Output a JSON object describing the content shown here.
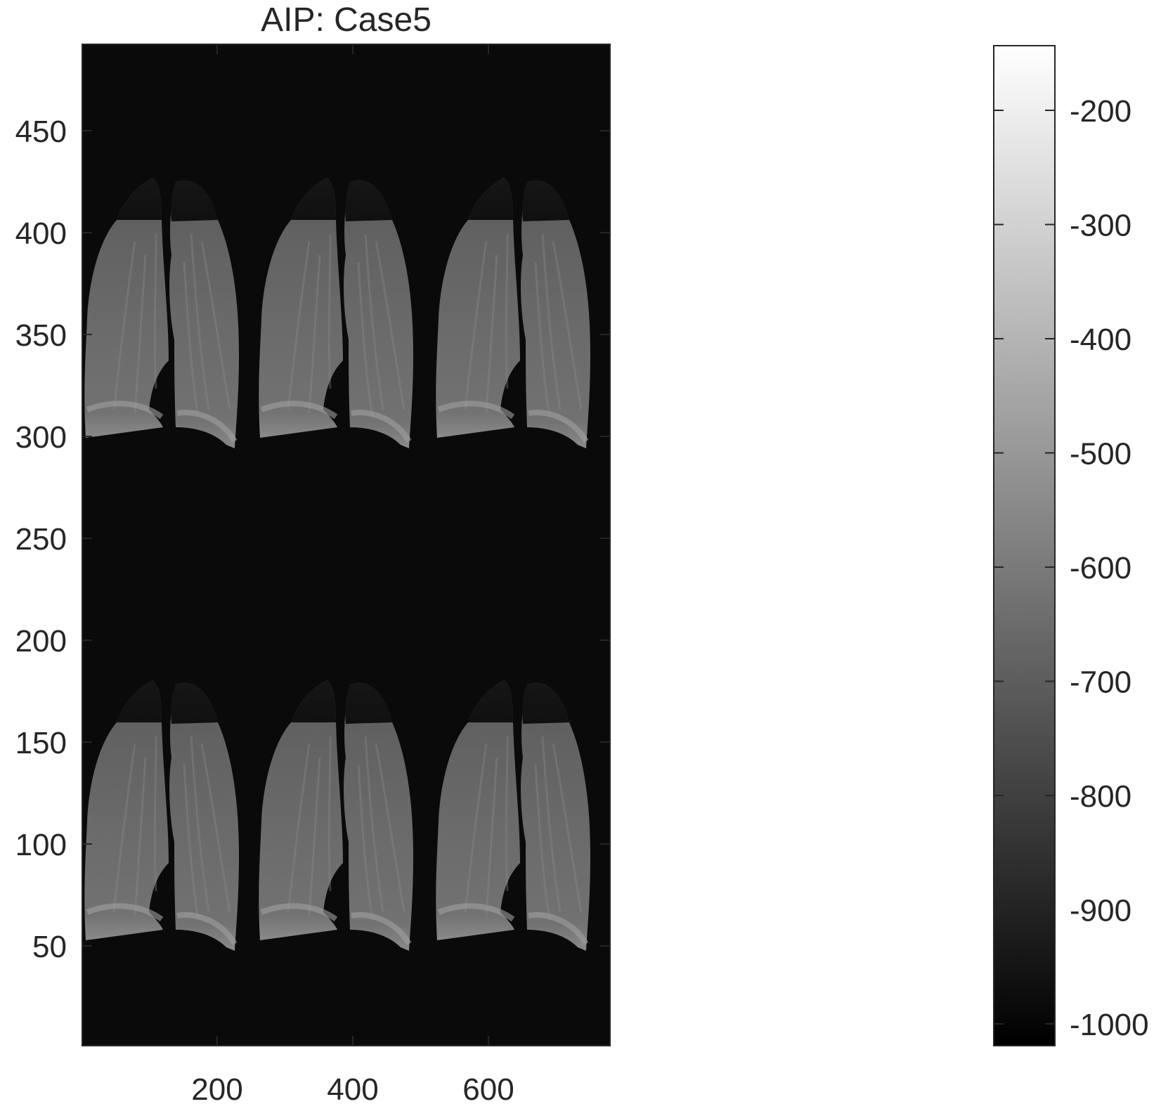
{
  "figure": {
    "title": "AIP: Case5"
  },
  "image_axes": {
    "x_ticks": [
      "200",
      "400",
      "600"
    ],
    "y_ticks": [
      "50",
      "100",
      "150",
      "200",
      "250",
      "300",
      "350",
      "400",
      "450"
    ],
    "background_color": "#0a0a0a"
  },
  "colorbar": {
    "colormap": "gray",
    "ticks": [
      "-200",
      "-300",
      "-400",
      "-500",
      "-600",
      "-700",
      "-800",
      "-900",
      "-1000"
    ]
  },
  "montage": {
    "rows": 2,
    "columns": 3,
    "content": "lung-projection"
  }
}
